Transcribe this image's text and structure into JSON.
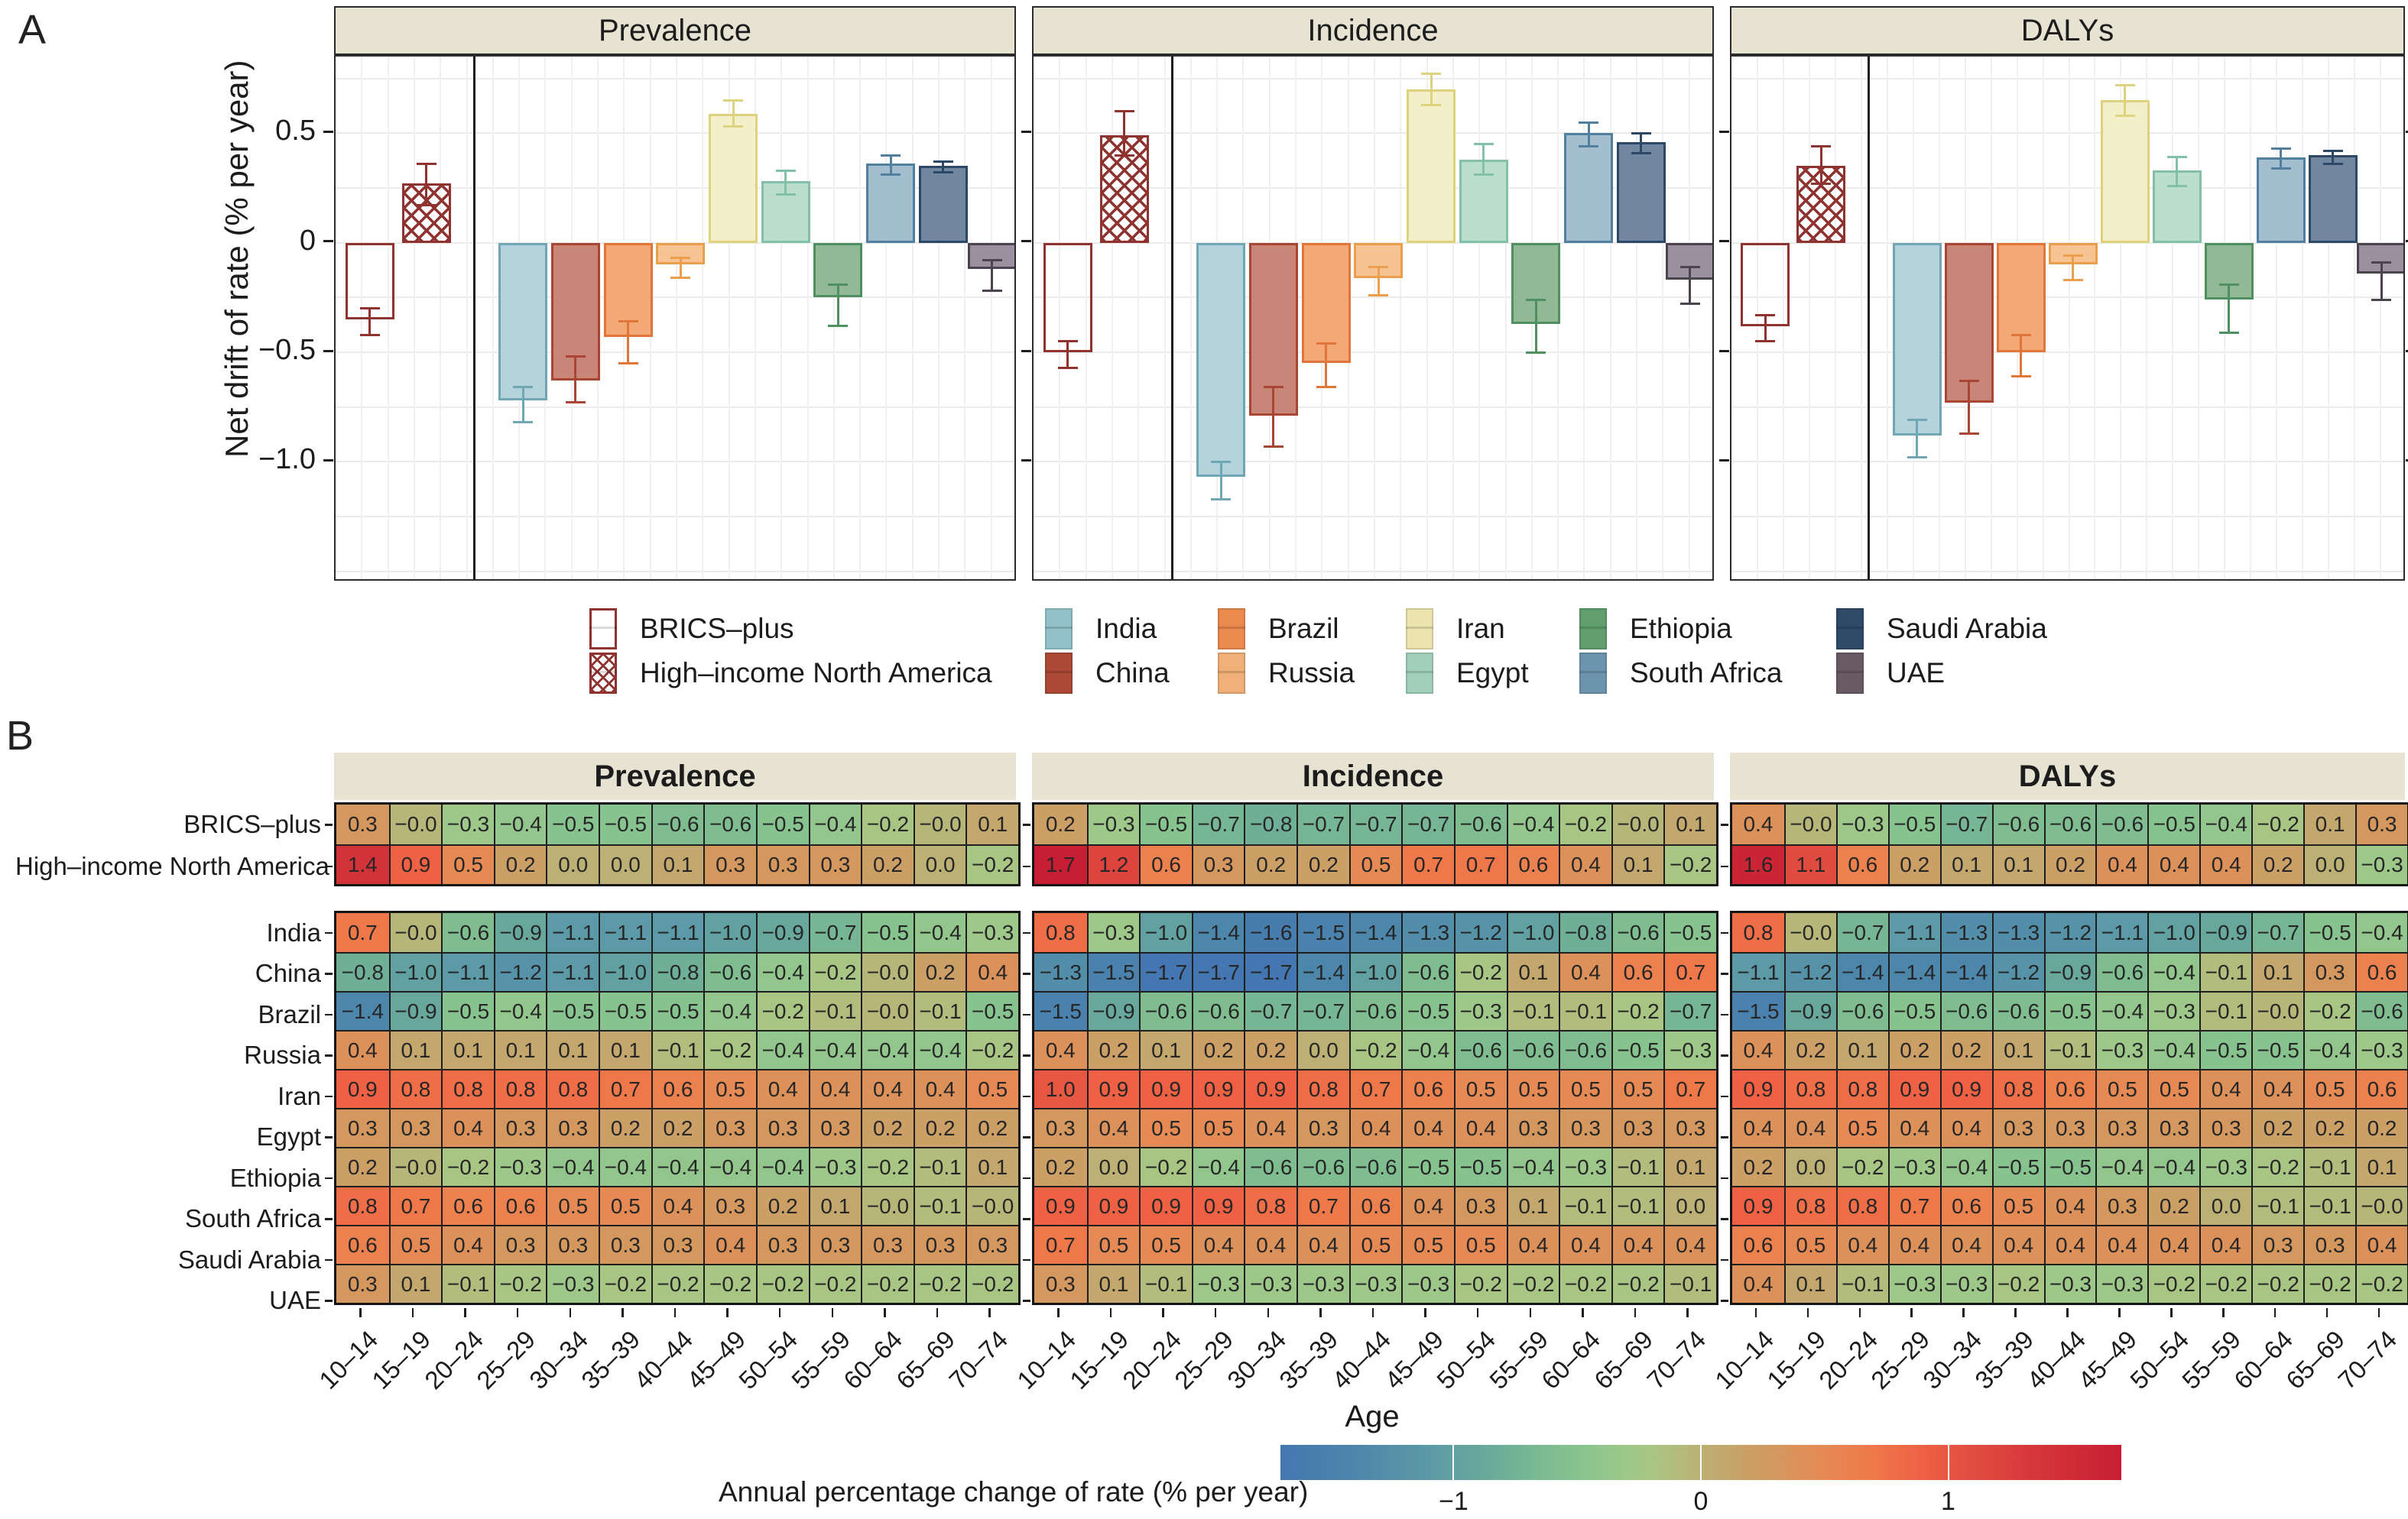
{
  "figure": {
    "panel_a_label": "A",
    "panel_b_label": "B"
  },
  "panelA": {
    "ylabel": "Net drift of rate (% per year)",
    "ytick_labels": [
      "0.5",
      "0",
      "−0.5",
      "−1.0"
    ],
    "ytick_values": [
      0.5,
      0,
      -0.5,
      -1.0
    ],
    "legend": {
      "special": [
        {
          "label": "BRICS–plus",
          "style": "open"
        },
        {
          "label": "High–income North America",
          "style": "crosshatch"
        }
      ],
      "countries": [
        "India",
        "China",
        "Brazil",
        "Russia",
        "Iran",
        "Egypt",
        "Ethiopia",
        "South Africa",
        "Saudi Arabia",
        "UAE"
      ]
    }
  },
  "panelB": {
    "xlabel": "Age",
    "colorbar_label": "Annual percentage change of rate (% per year)",
    "colorbar_tick_labels": [
      "−1",
      "0",
      "1"
    ]
  },
  "chart_data": [
    {
      "type": "bar",
      "panel": "A",
      "ylabel": "Net drift of rate (% per year)",
      "ylim": [
        -1.55,
        0.85
      ],
      "yticks": [
        0.5,
        0,
        -0.5,
        -1.0
      ],
      "categories": [
        "BRICS-plus",
        "High-income North America",
        "India",
        "China",
        "Brazil",
        "Russia",
        "Iran",
        "Egypt",
        "Ethiopia",
        "South Africa",
        "Saudi Arabia",
        "UAE"
      ],
      "facets": [
        {
          "title": "Prevalence",
          "values": [
            -0.35,
            0.27,
            -0.72,
            -0.63,
            -0.43,
            -0.1,
            0.59,
            0.28,
            -0.25,
            0.36,
            0.35,
            -0.12
          ],
          "ci_low": [
            -0.42,
            0.17,
            -0.82,
            -0.73,
            -0.55,
            -0.16,
            0.53,
            0.22,
            -0.38,
            0.31,
            0.32,
            -0.22
          ],
          "ci_high": [
            -0.3,
            0.36,
            -0.66,
            -0.52,
            -0.36,
            -0.07,
            0.65,
            0.33,
            -0.19,
            0.4,
            0.37,
            -0.08
          ]
        },
        {
          "title": "Incidence",
          "values": [
            -0.5,
            0.49,
            -1.07,
            -0.79,
            -0.55,
            -0.16,
            0.7,
            0.38,
            -0.37,
            0.5,
            0.46,
            -0.17
          ],
          "ci_low": [
            -0.57,
            0.4,
            -1.17,
            -0.93,
            -0.66,
            -0.24,
            0.63,
            0.31,
            -0.5,
            0.44,
            0.41,
            -0.28
          ],
          "ci_high": [
            -0.45,
            0.6,
            -1.0,
            -0.66,
            -0.46,
            -0.11,
            0.77,
            0.45,
            -0.26,
            0.55,
            0.5,
            -0.11
          ]
        },
        {
          "title": "DALYs",
          "values": [
            -0.38,
            0.35,
            -0.88,
            -0.73,
            -0.5,
            -0.1,
            0.65,
            0.33,
            -0.26,
            0.39,
            0.4,
            -0.14
          ],
          "ci_low": [
            -0.45,
            0.27,
            -0.98,
            -0.87,
            -0.61,
            -0.17,
            0.58,
            0.26,
            -0.41,
            0.34,
            0.36,
            -0.26
          ],
          "ci_high": [
            -0.33,
            0.44,
            -0.81,
            -0.63,
            -0.42,
            -0.06,
            0.72,
            0.39,
            -0.19,
            0.43,
            0.42,
            -0.09
          ]
        }
      ]
    },
    {
      "type": "heatmap",
      "panel": "B",
      "xlabel": "Age",
      "age_groups": [
        "10–14",
        "15–19",
        "20–24",
        "25–29",
        "30–34",
        "35–39",
        "40–44",
        "45–49",
        "50–54",
        "55–59",
        "60–64",
        "65–69",
        "70–74"
      ],
      "row_names_top": [
        "BRICS–plus",
        "High–income North America"
      ],
      "row_names_bottom": [
        "India",
        "China",
        "Brazil",
        "Russia",
        "Iran",
        "Egypt",
        "Ethiopia",
        "South Africa",
        "Saudi Arabia",
        "UAE"
      ],
      "facets": [
        {
          "title": "Prevalence",
          "block_top": [
            [
              "0.3",
              "−0.0",
              "−0.3",
              "−0.4",
              "−0.5",
              "−0.5",
              "−0.6",
              "−0.6",
              "−0.5",
              "−0.4",
              "−0.2",
              "−0.0",
              "0.1"
            ],
            [
              "1.4",
              "0.9",
              "0.5",
              "0.2",
              "0.0",
              "0.0",
              "0.1",
              "0.3",
              "0.3",
              "0.3",
              "0.2",
              "0.0",
              "−0.2"
            ]
          ],
          "block_bottom": [
            [
              "0.7",
              "−0.0",
              "−0.6",
              "−0.9",
              "−1.1",
              "−1.1",
              "−1.1",
              "−1.0",
              "−0.9",
              "−0.7",
              "−0.5",
              "−0.4",
              "−0.3"
            ],
            [
              "−0.8",
              "−1.0",
              "−1.1",
              "−1.2",
              "−1.1",
              "−1.0",
              "−0.8",
              "−0.6",
              "−0.4",
              "−0.2",
              "−0.0",
              "0.2",
              "0.4"
            ],
            [
              "−1.4",
              "−0.9",
              "−0.5",
              "−0.4",
              "−0.5",
              "−0.5",
              "−0.5",
              "−0.4",
              "−0.2",
              "−0.1",
              "−0.0",
              "−0.1",
              "−0.5"
            ],
            [
              "0.4",
              "0.1",
              "0.1",
              "0.1",
              "0.1",
              "0.1",
              "−0.1",
              "−0.2",
              "−0.4",
              "−0.4",
              "−0.4",
              "−0.4",
              "−0.2"
            ],
            [
              "0.9",
              "0.8",
              "0.8",
              "0.8",
              "0.8",
              "0.7",
              "0.6",
              "0.5",
              "0.4",
              "0.4",
              "0.4",
              "0.4",
              "0.5"
            ],
            [
              "0.3",
              "0.3",
              "0.4",
              "0.3",
              "0.3",
              "0.2",
              "0.2",
              "0.3",
              "0.3",
              "0.3",
              "0.2",
              "0.2",
              "0.2"
            ],
            [
              "0.2",
              "−0.0",
              "−0.2",
              "−0.3",
              "−0.4",
              "−0.4",
              "−0.4",
              "−0.4",
              "−0.4",
              "−0.3",
              "−0.2",
              "−0.1",
              "0.1"
            ],
            [
              "0.8",
              "0.7",
              "0.6",
              "0.6",
              "0.5",
              "0.5",
              "0.4",
              "0.3",
              "0.2",
              "0.1",
              "−0.0",
              "−0.1",
              "−0.0"
            ],
            [
              "0.6",
              "0.5",
              "0.4",
              "0.3",
              "0.3",
              "0.3",
              "0.3",
              "0.4",
              "0.3",
              "0.3",
              "0.3",
              "0.3",
              "0.3"
            ],
            [
              "0.3",
              "0.1",
              "−0.1",
              "−0.2",
              "−0.3",
              "−0.2",
              "−0.2",
              "−0.2",
              "−0.2",
              "−0.2",
              "−0.2",
              "−0.2",
              "−0.2"
            ]
          ]
        },
        {
          "title": "Incidence",
          "block_top": [
            [
              "0.2",
              "−0.3",
              "−0.5",
              "−0.7",
              "−0.8",
              "−0.7",
              "−0.7",
              "−0.7",
              "−0.6",
              "−0.4",
              "−0.2",
              "−0.0",
              "0.1"
            ],
            [
              "1.7",
              "1.2",
              "0.6",
              "0.3",
              "0.2",
              "0.2",
              "0.5",
              "0.7",
              "0.7",
              "0.6",
              "0.4",
              "0.1",
              "−0.2"
            ]
          ],
          "block_bottom": [
            [
              "0.8",
              "−0.3",
              "−1.0",
              "−1.4",
              "−1.6",
              "−1.5",
              "−1.4",
              "−1.3",
              "−1.2",
              "−1.0",
              "−0.8",
              "−0.6",
              "−0.5"
            ],
            [
              "−1.3",
              "−1.5",
              "−1.7",
              "−1.7",
              "−1.7",
              "−1.4",
              "−1.0",
              "−0.6",
              "−0.2",
              "0.1",
              "0.4",
              "0.6",
              "0.7"
            ],
            [
              "−1.5",
              "−0.9",
              "−0.6",
              "−0.6",
              "−0.7",
              "−0.7",
              "−0.6",
              "−0.5",
              "−0.3",
              "−0.1",
              "−0.1",
              "−0.2",
              "−0.7"
            ],
            [
              "0.4",
              "0.2",
              "0.1",
              "0.2",
              "0.2",
              "0.0",
              "−0.2",
              "−0.4",
              "−0.6",
              "−0.6",
              "−0.6",
              "−0.5",
              "−0.3"
            ],
            [
              "1.0",
              "0.9",
              "0.9",
              "0.9",
              "0.9",
              "0.8",
              "0.7",
              "0.6",
              "0.5",
              "0.5",
              "0.5",
              "0.5",
              "0.7"
            ],
            [
              "0.3",
              "0.4",
              "0.5",
              "0.5",
              "0.4",
              "0.3",
              "0.4",
              "0.4",
              "0.4",
              "0.3",
              "0.3",
              "0.3",
              "0.3"
            ],
            [
              "0.2",
              "0.0",
              "−0.2",
              "−0.4",
              "−0.6",
              "−0.6",
              "−0.6",
              "−0.5",
              "−0.5",
              "−0.4",
              "−0.3",
              "−0.1",
              "0.1"
            ],
            [
              "0.9",
              "0.9",
              "0.9",
              "0.9",
              "0.8",
              "0.7",
              "0.6",
              "0.4",
              "0.3",
              "0.1",
              "−0.1",
              "−0.1",
              "0.0"
            ],
            [
              "0.7",
              "0.5",
              "0.5",
              "0.4",
              "0.4",
              "0.4",
              "0.5",
              "0.5",
              "0.5",
              "0.4",
              "0.4",
              "0.4",
              "0.4"
            ],
            [
              "0.3",
              "0.1",
              "−0.1",
              "−0.3",
              "−0.3",
              "−0.3",
              "−0.3",
              "−0.3",
              "−0.2",
              "−0.2",
              "−0.2",
              "−0.2",
              "−0.1"
            ]
          ]
        },
        {
          "title": "DALYs",
          "block_top": [
            [
              "0.4",
              "−0.0",
              "−0.3",
              "−0.5",
              "−0.7",
              "−0.6",
              "−0.6",
              "−0.6",
              "−0.5",
              "−0.4",
              "−0.2",
              "0.1",
              "0.3"
            ],
            [
              "1.6",
              "1.1",
              "0.6",
              "0.2",
              "0.1",
              "0.1",
              "0.2",
              "0.4",
              "0.4",
              "0.4",
              "0.2",
              "0.0",
              "−0.3"
            ]
          ],
          "block_bottom": [
            [
              "0.8",
              "−0.0",
              "−0.7",
              "−1.1",
              "−1.3",
              "−1.3",
              "−1.2",
              "−1.1",
              "−1.0",
              "−0.9",
              "−0.7",
              "−0.5",
              "−0.4"
            ],
            [
              "−1.1",
              "−1.2",
              "−1.4",
              "−1.4",
              "−1.4",
              "−1.2",
              "−0.9",
              "−0.6",
              "−0.4",
              "−0.1",
              "0.1",
              "0.3",
              "0.6"
            ],
            [
              "−1.5",
              "−0.9",
              "−0.6",
              "−0.5",
              "−0.6",
              "−0.6",
              "−0.5",
              "−0.4",
              "−0.3",
              "−0.1",
              "−0.0",
              "−0.2",
              "−0.6"
            ],
            [
              "0.4",
              "0.2",
              "0.1",
              "0.2",
              "0.2",
              "0.1",
              "−0.1",
              "−0.3",
              "−0.4",
              "−0.5",
              "−0.5",
              "−0.4",
              "−0.3"
            ],
            [
              "0.9",
              "0.8",
              "0.8",
              "0.9",
              "0.9",
              "0.8",
              "0.6",
              "0.5",
              "0.5",
              "0.4",
              "0.4",
              "0.5",
              "0.6"
            ],
            [
              "0.4",
              "0.4",
              "0.5",
              "0.4",
              "0.4",
              "0.3",
              "0.3",
              "0.3",
              "0.3",
              "0.3",
              "0.2",
              "0.2",
              "0.2"
            ],
            [
              "0.2",
              "0.0",
              "−0.2",
              "−0.3",
              "−0.4",
              "−0.5",
              "−0.5",
              "−0.4",
              "−0.4",
              "−0.3",
              "−0.2",
              "−0.1",
              "0.1"
            ],
            [
              "0.9",
              "0.8",
              "0.8",
              "0.7",
              "0.6",
              "0.5",
              "0.4",
              "0.3",
              "0.2",
              "0.0",
              "−0.1",
              "−0.1",
              "−0.0"
            ],
            [
              "0.6",
              "0.5",
              "0.4",
              "0.4",
              "0.4",
              "0.4",
              "0.4",
              "0.4",
              "0.4",
              "0.4",
              "0.3",
              "0.3",
              "0.4"
            ],
            [
              "0.4",
              "0.1",
              "−0.1",
              "−0.3",
              "−0.3",
              "−0.2",
              "−0.3",
              "−0.3",
              "−0.2",
              "−0.2",
              "−0.2",
              "−0.2",
              "−0.2"
            ]
          ]
        }
      ],
      "colorbar": {
        "label": "Annual percentage change of rate (% per year)",
        "ticks": [
          -1,
          0,
          1
        ],
        "range": [
          -1.7,
          1.7
        ]
      }
    }
  ],
  "colors": {
    "facet_header_bg": "#e6e3d3",
    "special_stroke": "#8e3330",
    "bars": [
      {
        "name": "BRICS-plus",
        "fill": "none",
        "stroke": "#8e3330",
        "style": "open"
      },
      {
        "name": "High-income North America",
        "fill": "none",
        "stroke": "#8e3330",
        "style": "crosshatch"
      },
      {
        "name": "India",
        "fill": "#b5d3da",
        "stroke": "#6fa7b5",
        "legend": "#92c1c9"
      },
      {
        "name": "China",
        "fill": "#c98578",
        "stroke": "#a84534",
        "legend": "#ad4937"
      },
      {
        "name": "Brazil",
        "fill": "#f3a876",
        "stroke": "#e0763a",
        "legend": "#eb8a4d"
      },
      {
        "name": "Russia",
        "fill": "#f5c492",
        "stroke": "#eb9e4b",
        "legend": "#f0b077"
      },
      {
        "name": "Iran",
        "fill": "#f3efc8",
        "stroke": "#ddd37f",
        "legend": "#ebe4ae"
      },
      {
        "name": "Egypt",
        "fill": "#bcdecd",
        "stroke": "#83c0a8",
        "legend": "#a2cfba"
      },
      {
        "name": "Ethiopia",
        "fill": "#91b996",
        "stroke": "#4f8f60",
        "legend": "#609e6e"
      },
      {
        "name": "South Africa",
        "fill": "#a3becf",
        "stroke": "#527f9d",
        "legend": "#6d94ae"
      },
      {
        "name": "Saudi Arabia",
        "fill": "#71879f",
        "stroke": "#2c4864",
        "legend": "#2e4a68"
      },
      {
        "name": "UAE",
        "fill": "#99919e",
        "stroke": "#4b4350",
        "legend": "#6a5a63"
      }
    ],
    "heat_stops": [
      [
        -1.7,
        "#4477b1"
      ],
      [
        -1.4,
        "#4d86ab"
      ],
      [
        -1.1,
        "#5b9aa6"
      ],
      [
        -0.9,
        "#67a79c"
      ],
      [
        -0.7,
        "#76b694"
      ],
      [
        -0.5,
        "#87c38e"
      ],
      [
        -0.3,
        "#9dc889"
      ],
      [
        -0.15,
        "#adc382"
      ],
      [
        0.0,
        "#bcb074"
      ],
      [
        0.15,
        "#c7a268"
      ],
      [
        0.3,
        "#d4985f"
      ],
      [
        0.5,
        "#e58a54"
      ],
      [
        0.7,
        "#ef784a"
      ],
      [
        0.9,
        "#ee6144"
      ],
      [
        1.1,
        "#e24c40"
      ],
      [
        1.4,
        "#d23339"
      ],
      [
        1.7,
        "#c81e33"
      ]
    ]
  }
}
